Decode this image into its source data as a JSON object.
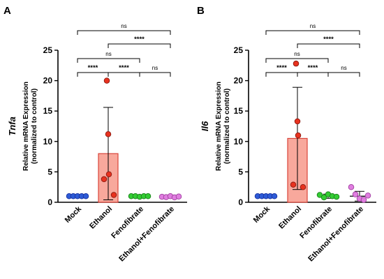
{
  "chart_data": [
    {
      "panel": "A",
      "type": "bar",
      "gene_label": "Tnfa",
      "ylabel_line1": "Relative mRNA Expression",
      "ylabel_line2": "(normalized to control)",
      "categories": [
        "Mock",
        "Ethanol",
        "Fenofibrate",
        "Ethanol+Fenofibrate"
      ],
      "means": [
        1.0,
        8.0,
        1.0,
        0.9
      ],
      "sd": [
        0.1,
        7.6,
        0.15,
        0.12
      ],
      "points": [
        [
          1.0,
          1.0,
          1.0,
          1.0,
          1.0
        ],
        [
          20.0,
          11.2,
          4.6,
          3.8,
          1.2
        ],
        [
          1.0,
          1.0,
          0.9,
          1.0,
          1.0
        ],
        [
          0.9,
          0.85,
          1.0,
          0.8,
          0.95
        ]
      ],
      "ylim": [
        0,
        25
      ],
      "yticks": [
        0,
        5,
        10,
        15,
        20,
        25
      ],
      "comparisons": [
        {
          "from": 0,
          "to": 3,
          "label": "ns",
          "level": 4
        },
        {
          "from": 1,
          "to": 3,
          "label": "****",
          "level": 3
        },
        {
          "from": 0,
          "to": 2,
          "label": "ns",
          "level": 2
        },
        {
          "from": 0,
          "to": 1,
          "label": "****",
          "level": 1
        },
        {
          "from": 1,
          "to": 2,
          "label": "****",
          "level": 1
        },
        {
          "from": 2,
          "to": 3,
          "label": "ns",
          "level": 1
        }
      ]
    },
    {
      "panel": "B",
      "type": "bar",
      "gene_label": "Il6",
      "ylabel_line1": "Relative mRNA Expression",
      "ylabel_line2": "(normalized to control)",
      "categories": [
        "Mock",
        "Ethanol",
        "Fenofibrate",
        "Ethanol+Fenofibrate"
      ],
      "means": [
        1.0,
        10.5,
        1.0,
        1.0
      ],
      "sd": [
        0.1,
        8.4,
        0.35,
        0.8
      ],
      "points": [
        [
          1.0,
          1.0,
          1.0,
          1.0,
          1.0
        ],
        [
          22.8,
          13.3,
          11.0,
          2.9,
          2.5
        ],
        [
          1.2,
          0.8,
          1.3,
          1.0,
          0.9
        ],
        [
          2.5,
          1.3,
          0.6,
          0.4,
          1.1
        ]
      ],
      "ylim": [
        0,
        25
      ],
      "yticks": [
        0,
        5,
        10,
        15,
        20,
        25
      ],
      "comparisons": [
        {
          "from": 0,
          "to": 3,
          "label": "ns",
          "level": 4
        },
        {
          "from": 1,
          "to": 3,
          "label": "****",
          "level": 3
        },
        {
          "from": 0,
          "to": 2,
          "label": "ns",
          "level": 2
        },
        {
          "from": 0,
          "to": 1,
          "label": "****",
          "level": 1
        },
        {
          "from": 1,
          "to": 2,
          "label": "****",
          "level": 1
        },
        {
          "from": 2,
          "to": 3,
          "label": "ns",
          "level": 1
        }
      ]
    }
  ],
  "colors": {
    "groups": [
      {
        "fill": "#2d5bd7",
        "stroke": "#1a33a0"
      },
      {
        "fill": "#f7a093",
        "stroke": "#d9443a",
        "bar": "#f8a89c"
      },
      {
        "fill": "#33cc33",
        "stroke": "#1a801a"
      },
      {
        "fill": "#e07ee0",
        "stroke": "#a040a0"
      }
    ],
    "ethanol_points": {
      "fill": "#e8321f",
      "stroke": "#8a1a10"
    }
  }
}
